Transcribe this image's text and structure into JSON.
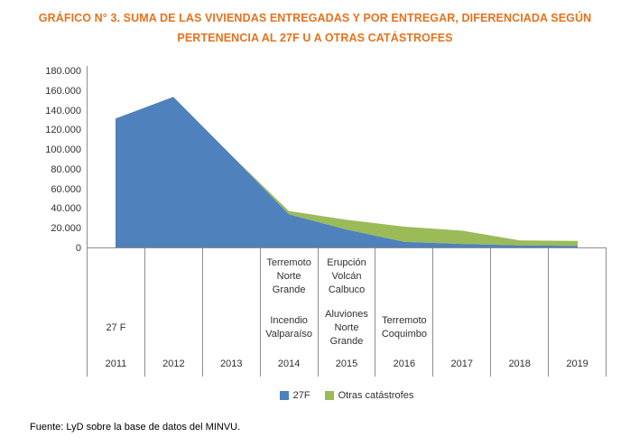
{
  "title": {
    "line1": "GRÁFICO N° 3. SUMA DE LAS VIVIENDAS ENTREGADAS Y POR ENTREGAR, DIFERENCIADA SEGÚN",
    "line2": "PERTENENCIA AL 27F U A OTRAS CATÁSTROFES"
  },
  "source_note": "Fuente: LyD sobre la base de datos del MINVU.",
  "colors": {
    "title_orange": "#E8711A",
    "series_27f_blue": "#4F81BD",
    "series_otras_green": "#9BBB59",
    "axis_line_grey": "#8E8E8E",
    "text_dark": "#303030"
  },
  "legend": {
    "items": [
      {
        "label": "27F",
        "color": "#4F81BD"
      },
      {
        "label": "Otras catástrofes",
        "color": "#9BBB59"
      }
    ]
  },
  "chart_data": {
    "type": "area",
    "stacked": true,
    "title": "GRÁFICO N° 3. SUMA DE LAS VIVIENDAS ENTREGADAS Y POR ENTREGAR, DIFERENCIADA SEGÚN PERTENENCIA AL 27F U A OTRAS CATÁSTROFES",
    "categories": [
      "2011",
      "2012",
      "2013",
      "2014",
      "2015",
      "2016",
      "2017",
      "2018",
      "2019"
    ],
    "series": [
      {
        "name": "27F",
        "color": "#4F81BD",
        "values": [
          132000,
          154000,
          95000,
          34500,
          19000,
          6500,
          4500,
          3000,
          2500
        ]
      },
      {
        "name": "Otras catástrofes",
        "color": "#9BBB59",
        "values": [
          0,
          0,
          0,
          3500,
          10000,
          15500,
          13500,
          5000,
          5000
        ]
      }
    ],
    "ylim": [
      0,
      180000
    ],
    "ytick_step": 20000,
    "ytick_labels": [
      "0",
      "20.000",
      "40.000",
      "60.000",
      "80.000",
      "100.000",
      "120.000",
      "140.000",
      "160.000",
      "180.000"
    ],
    "grid": false,
    "legend_position": "bottom",
    "category_events": [
      {
        "year": "2011",
        "event_top": "",
        "event_bottom": "27 F"
      },
      {
        "year": "2012",
        "event_top": "",
        "event_bottom": ""
      },
      {
        "year": "2013",
        "event_top": "",
        "event_bottom": ""
      },
      {
        "year": "2014",
        "event_top": "Terremoto Norte Grande",
        "event_bottom": "Incendio Valparaíso"
      },
      {
        "year": "2015",
        "event_top": "Erupción Volcán Calbuco",
        "event_bottom": "Aluviones Norte Grande"
      },
      {
        "year": "2016",
        "event_top": "",
        "event_bottom": "Terremoto Coquimbo"
      },
      {
        "year": "2017",
        "event_top": "",
        "event_bottom": ""
      },
      {
        "year": "2018",
        "event_top": "",
        "event_bottom": ""
      },
      {
        "year": "2019",
        "event_top": "",
        "event_bottom": ""
      }
    ]
  }
}
